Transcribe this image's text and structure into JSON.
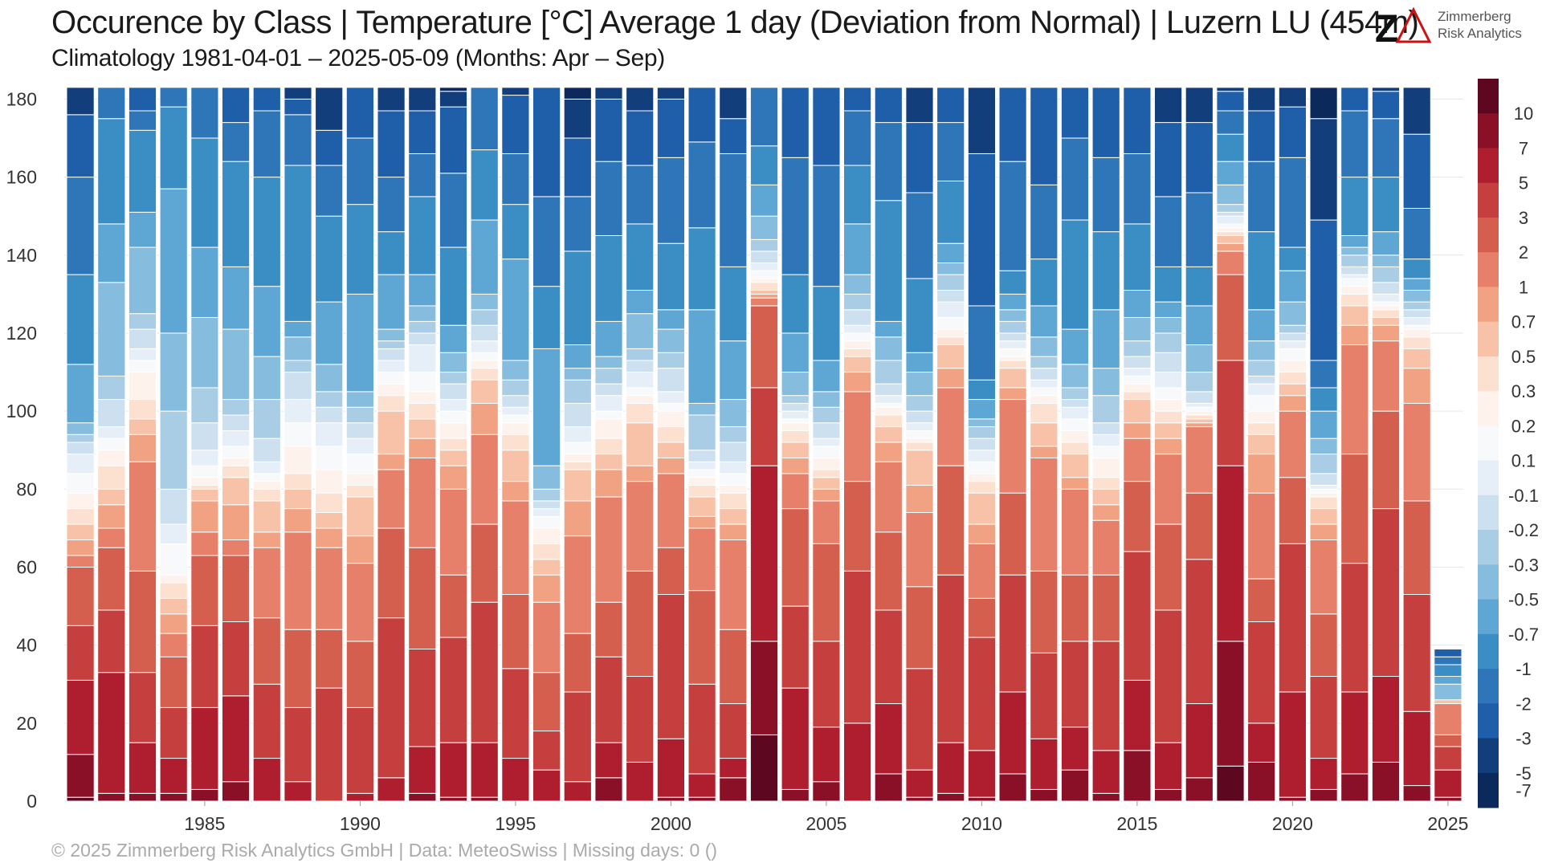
{
  "title": "Occurence by Class | Temperature [°C] Average 1 day (Deviation from Normal) | Luzern  LU (454m)",
  "subtitle": "Climatology 1981-04-01 – 2025-05-09 (Months: Apr – Sep)",
  "footer": "©  2025 Zimmerberg Risk Analytics GmbH | Data: MeteoSwiss | Missing days: 0 ()",
  "logo": {
    "line1": "Zimmerberg",
    "line2": "Risk Analytics"
  },
  "chart_data": {
    "type": "bar",
    "stacked": true,
    "title": "Occurence by Class | Temperature [°C] Average 1 day (Deviation from Normal) | Luzern  LU (454m)",
    "xlabel": "",
    "ylabel": "",
    "ylim": [
      0,
      184
    ],
    "yticks": [
      0,
      20,
      40,
      60,
      80,
      100,
      120,
      140,
      160,
      180
    ],
    "xticks": [
      1985,
      1990,
      1995,
      2000,
      2005,
      2010,
      2015,
      2020,
      2025
    ],
    "grid": true,
    "legend": "right colorbar",
    "classes": [
      "-7",
      "-5",
      "-3",
      "-2",
      "-1",
      "-0.7",
      "-0.5",
      "-0.3",
      "-0.2",
      "-0.1",
      "0.1",
      "0.2",
      "0.3",
      "0.5",
      "0.7",
      "1",
      "2",
      "3",
      "5",
      "7",
      "10"
    ],
    "class_colors": [
      "#0b2a5b",
      "#123f7c",
      "#1f5ea8",
      "#2e76b8",
      "#3b8ec4",
      "#5ea7d4",
      "#86bcdd",
      "#aacde6",
      "#cde0ef",
      "#e6eff7",
      "#f7f9fb",
      "#fdf2ec",
      "#fce0d0",
      "#f7c2a8",
      "#f0a282",
      "#e6806a",
      "#d45f4f",
      "#c43f3e",
      "#ae1e2e",
      "#8a1028",
      "#5e0720"
    ],
    "years": [
      1981,
      1982,
      1983,
      1984,
      1985,
      1986,
      1987,
      1988,
      1989,
      1990,
      1991,
      1992,
      1993,
      1994,
      1995,
      1996,
      1997,
      1998,
      1999,
      2000,
      2001,
      2002,
      2003,
      2004,
      2005,
      2006,
      2007,
      2008,
      2009,
      2010,
      2011,
      2012,
      2013,
      2014,
      2015,
      2016,
      2017,
      2018,
      2019,
      2020,
      2021,
      2022,
      2023,
      2024,
      2025
    ],
    "cumulative_note": "boundaries from bottom of stack (warmest class 10 at bottom) upward",
    "boundaries": [
      [
        1,
        12,
        31,
        45,
        60,
        63,
        67,
        71,
        75,
        79,
        84,
        89,
        92,
        94,
        97,
        112,
        135,
        160,
        176,
        183,
        183
      ],
      [
        0,
        2,
        33,
        49,
        65,
        70,
        76,
        80,
        86,
        90,
        93,
        96,
        103,
        109,
        133,
        148,
        175,
        183,
        183,
        183,
        183
      ],
      [
        0,
        2,
        15,
        33,
        59,
        87,
        94,
        98,
        103,
        110,
        113,
        116,
        121,
        125,
        142,
        151,
        172,
        177,
        183,
        183,
        183
      ],
      [
        0,
        2,
        11,
        24,
        37,
        43,
        48,
        52,
        56,
        58,
        66,
        71,
        80,
        100,
        120,
        157,
        178,
        183,
        183,
        183,
        183
      ],
      [
        0,
        3,
        24,
        45,
        63,
        69,
        77,
        80,
        81,
        83,
        86,
        90,
        97,
        106,
        124,
        142,
        170,
        183,
        183,
        183,
        183
      ],
      [
        0,
        5,
        27,
        46,
        63,
        67,
        76,
        83,
        86,
        88,
        91,
        95,
        99,
        103,
        121,
        137,
        164,
        174,
        183,
        183,
        183
      ],
      [
        0,
        0,
        11,
        30,
        47,
        65,
        69,
        77,
        80,
        82,
        84,
        87,
        93,
        103,
        114,
        132,
        160,
        177,
        183,
        183,
        183
      ],
      [
        0,
        0,
        5,
        24,
        44,
        69,
        75,
        80,
        84,
        91,
        97,
        103,
        110,
        113,
        119,
        123,
        163,
        176,
        180,
        183,
        183
      ],
      [
        0,
        0,
        0,
        29,
        44,
        65,
        70,
        74,
        79,
        85,
        91,
        97,
        101,
        105,
        112,
        128,
        150,
        163,
        172,
        183,
        183
      ],
      [
        0,
        0,
        2,
        24,
        41,
        61,
        68,
        78,
        81,
        84,
        89,
        93,
        97,
        101,
        105,
        130,
        153,
        170,
        183,
        183,
        183
      ],
      [
        0,
        0,
        6,
        47,
        70,
        85,
        89,
        100,
        104,
        107,
        110,
        113,
        116,
        118,
        121,
        135,
        146,
        160,
        177,
        183,
        183
      ],
      [
        0,
        2,
        14,
        39,
        65,
        88,
        93,
        98,
        102,
        105,
        110,
        117,
        120,
        123,
        127,
        135,
        155,
        166,
        177,
        183,
        183
      ],
      [
        0,
        1,
        15,
        42,
        58,
        80,
        86,
        90,
        93,
        97,
        100,
        103,
        107,
        110,
        115,
        122,
        142,
        161,
        178,
        182,
        183
      ],
      [
        0,
        1,
        15,
        51,
        71,
        94,
        102,
        108,
        111,
        113,
        115,
        118,
        122,
        126,
        130,
        149,
        167,
        183,
        183,
        183,
        183
      ],
      [
        0,
        0,
        11,
        34,
        53,
        77,
        82,
        90,
        94,
        97,
        99,
        101,
        104,
        108,
        113,
        139,
        153,
        166,
        181,
        183,
        183
      ],
      [
        0,
        0,
        8,
        18,
        33,
        51,
        58,
        62,
        66,
        70,
        73,
        75,
        77,
        80,
        86,
        116,
        132,
        155,
        183,
        183,
        183
      ],
      [
        0,
        0,
        5,
        28,
        43,
        68,
        77,
        85,
        87,
        89,
        92,
        96,
        102,
        108,
        111,
        117,
        141,
        155,
        170,
        180,
        183
      ],
      [
        0,
        6,
        15,
        37,
        51,
        78,
        85,
        89,
        93,
        98,
        100,
        104,
        107,
        111,
        114,
        123,
        145,
        164,
        180,
        183,
        183
      ],
      [
        0,
        0,
        10,
        32,
        59,
        82,
        86,
        97,
        102,
        104,
        106,
        110,
        113,
        116,
        125,
        131,
        148,
        163,
        177,
        183,
        183
      ],
      [
        0,
        1,
        16,
        53,
        65,
        84,
        88,
        92,
        96,
        100,
        102,
        105,
        111,
        115,
        121,
        126,
        143,
        165,
        180,
        183,
        183
      ],
      [
        0,
        1,
        7,
        30,
        54,
        70,
        73,
        78,
        81,
        83,
        85,
        87,
        90,
        99,
        102,
        126,
        147,
        169,
        183,
        183,
        183
      ],
      [
        0,
        6,
        11,
        25,
        44,
        67,
        71,
        75,
        79,
        81,
        84,
        87,
        92,
        96,
        103,
        118,
        137,
        166,
        175,
        183,
        183
      ],
      [
        17,
        41,
        86,
        106,
        127,
        129,
        130,
        131,
        133,
        134,
        136,
        138,
        141,
        144,
        150,
        158,
        168,
        183,
        183,
        183,
        183
      ],
      [
        0,
        3,
        29,
        50,
        75,
        84,
        88,
        92,
        95,
        97,
        98,
        100,
        102,
        104,
        110,
        120,
        135,
        165,
        183,
        183,
        183
      ],
      [
        0,
        5,
        19,
        41,
        66,
        77,
        80,
        83,
        85,
        88,
        91,
        93,
        97,
        101,
        105,
        113,
        132,
        163,
        183,
        183,
        183
      ],
      [
        0,
        0,
        20,
        59,
        82,
        105,
        110,
        114,
        116,
        118,
        120,
        122,
        126,
        130,
        135,
        148,
        163,
        177,
        183,
        183,
        183
      ],
      [
        0,
        7,
        25,
        49,
        69,
        87,
        92,
        96,
        99,
        101,
        102,
        104,
        107,
        113,
        119,
        123,
        154,
        174,
        183,
        183,
        183
      ],
      [
        0,
        1,
        8,
        34,
        55,
        74,
        81,
        90,
        92,
        93,
        95,
        97,
        100,
        104,
        110,
        115,
        134,
        156,
        174,
        183,
        183
      ],
      [
        0,
        2,
        15,
        58,
        86,
        106,
        111,
        117,
        119,
        121,
        124,
        128,
        131,
        135,
        138,
        143,
        159,
        174,
        183,
        183,
        183
      ],
      [
        0,
        1,
        13,
        42,
        52,
        66,
        71,
        79,
        82,
        84,
        87,
        90,
        93,
        96,
        98,
        103,
        108,
        127,
        166,
        183,
        183
      ],
      [
        0,
        7,
        28,
        58,
        79,
        103,
        106,
        111,
        113,
        114,
        116,
        118,
        120,
        123,
        126,
        130,
        136,
        164,
        183,
        183,
        183
      ],
      [
        0,
        3,
        16,
        38,
        59,
        88,
        91,
        97,
        102,
        104,
        106,
        108,
        111,
        114,
        119,
        127,
        139,
        158,
        183,
        183,
        183
      ],
      [
        0,
        8,
        19,
        41,
        58,
        80,
        83,
        89,
        92,
        95,
        98,
        101,
        103,
        106,
        112,
        121,
        149,
        170,
        183,
        183,
        183
      ],
      [
        0,
        2,
        13,
        41,
        58,
        72,
        76,
        80,
        83,
        88,
        91,
        94,
        97,
        104,
        111,
        126,
        146,
        165,
        183,
        183,
        183
      ],
      [
        0,
        13,
        31,
        64,
        82,
        93,
        97,
        103,
        105,
        107,
        109,
        111,
        114,
        118,
        124,
        131,
        148,
        166,
        183,
        183,
        183
      ],
      [
        0,
        3,
        15,
        49,
        71,
        89,
        93,
        97,
        100,
        103,
        106,
        110,
        115,
        120,
        124,
        128,
        137,
        155,
        174,
        183,
        183
      ],
      [
        0,
        6,
        25,
        62,
        79,
        96,
        97,
        98,
        99,
        100,
        101,
        102,
        105,
        110,
        117,
        127,
        137,
        156,
        174,
        183,
        183
      ],
      [
        9,
        41,
        86,
        113,
        135,
        141,
        143,
        145,
        146,
        147,
        148,
        150,
        151,
        153,
        158,
        164,
        171,
        177,
        182,
        183,
        183
      ],
      [
        0,
        10,
        20,
        46,
        57,
        79,
        89,
        94,
        97,
        100,
        104,
        107,
        109,
        113,
        118,
        126,
        146,
        164,
        177,
        183,
        183
      ],
      [
        0,
        1,
        28,
        66,
        83,
        100,
        104,
        107,
        110,
        113,
        116,
        118,
        120,
        122,
        128,
        136,
        142,
        165,
        178,
        183,
        183
      ],
      [
        0,
        3,
        11,
        32,
        48,
        67,
        71,
        75,
        78,
        79,
        80,
        81,
        84,
        89,
        93,
        100,
        106,
        113,
        149,
        175,
        183
      ],
      [
        0,
        7,
        28,
        61,
        89,
        117,
        122,
        127,
        130,
        132,
        134,
        135,
        137,
        140,
        142,
        145,
        160,
        177,
        183,
        183,
        183
      ],
      [
        0,
        10,
        32,
        75,
        100,
        118,
        122,
        124,
        126,
        127,
        128,
        130,
        133,
        137,
        140,
        146,
        160,
        175,
        182,
        183,
        183
      ],
      [
        0,
        4,
        23,
        53,
        77,
        102,
        111,
        116,
        119,
        121,
        122,
        124,
        126,
        128,
        131,
        134,
        139,
        152,
        171,
        183,
        183
      ],
      [
        0,
        1,
        8,
        14,
        17,
        25,
        25,
        26,
        26,
        26,
        26,
        26,
        26,
        26,
        30,
        32,
        35,
        37,
        39,
        39,
        39
      ]
    ]
  }
}
